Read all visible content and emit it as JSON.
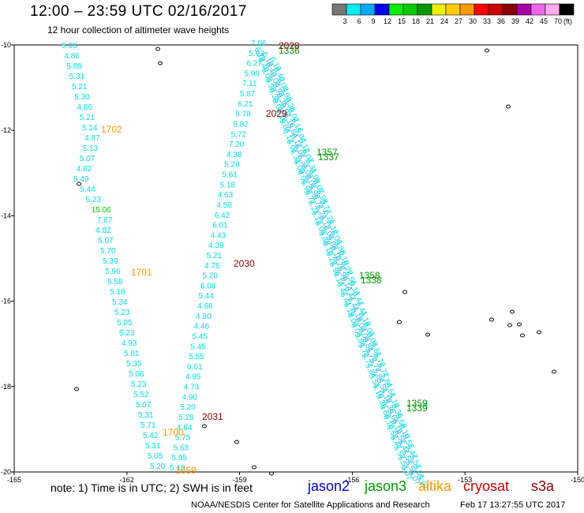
{
  "title": "12:00 – 23:59 UTC 02/16/2017",
  "subtitle": "12 hour collection of altimeter wave heights",
  "colorbar": {
    "unit": "(ft)",
    "bins": [
      {
        "color": "#777777",
        "label": "3"
      },
      {
        "color": "#00eeee",
        "label": "6"
      },
      {
        "color": "#00aaff",
        "label": "9"
      },
      {
        "color": "#0000ee",
        "label": "12"
      },
      {
        "color": "#00ee00",
        "label": "15"
      },
      {
        "color": "#00cc00",
        "label": "18"
      },
      {
        "color": "#009900",
        "label": "21"
      },
      {
        "color": "#eeee00",
        "label": "24"
      },
      {
        "color": "#ffcc00",
        "label": "27"
      },
      {
        "color": "#ff9900",
        "label": "30"
      },
      {
        "color": "#ff0000",
        "label": "33"
      },
      {
        "color": "#cc0000",
        "label": "36"
      },
      {
        "color": "#880000",
        "label": "39"
      },
      {
        "color": "#aa00aa",
        "label": "42"
      },
      {
        "color": "#ee66ee",
        "label": "45"
      },
      {
        "color": "#ffaaee",
        "label": "70"
      },
      {
        "color": "#000000",
        "label": ""
      }
    ]
  },
  "axes": {
    "lat_ticks": [
      "-10",
      "-12",
      "-14",
      "-16",
      "-18",
      "-20"
    ],
    "lon_ticks": [
      "-165",
      "-162",
      "-159",
      "-156",
      "-153",
      "-150"
    ]
  },
  "tracks": {
    "track_a": [
      "5.03",
      "4.86",
      "5.09",
      "5.31",
      "5.21",
      "5.30",
      "4.86",
      "5.21",
      "5.14",
      "4.87",
      "5.13",
      "5.07",
      "4.82",
      "5.49",
      "5.44",
      "5.23",
      "15.06",
      "7.67",
      "4.82",
      "5.07",
      "5.70",
      "5.39",
      "5.96",
      "5.58",
      "5.18",
      "5.34",
      "5.23",
      "5.05",
      "5.23",
      "4.93",
      "5.01",
      "5.35",
      "5.06",
      "5.23",
      "5.52",
      "5.07",
      "5.31",
      "5.71",
      "5.42",
      "5.31",
      "5.05",
      "5.20"
    ],
    "track_b": [
      "7.06",
      "5.93",
      "6.27",
      "5.99",
      "7.11",
      "5.87",
      "6.21",
      "5.78",
      "5.82",
      "5.72",
      "7.20",
      "4.38",
      "5.28",
      "5.61",
      "5.18",
      "4.63",
      "4.50",
      "6.42",
      "6.01",
      "4.43",
      "4.39",
      "5.21",
      "4.75",
      "5.20",
      "6.08",
      "5.44",
      "4.66",
      "4.80",
      "4.46",
      "5.45",
      "5.45",
      "5.55",
      "6.01",
      "4.95",
      "4.73",
      "4.90",
      "5.20",
      "5.28",
      "4.84",
      "5.75",
      "5.63",
      "5.95",
      "5.18"
    ],
    "track_c_labels": [
      "6.19",
      "6.40",
      "6.03",
      "5.98",
      "6.35",
      "6.02",
      "6.16",
      "5.84",
      "6.12",
      "6.07",
      "6.31",
      "6.09",
      "6.02",
      "5.98",
      "5.77",
      "6.21",
      "6.12",
      "6.03",
      "5.88",
      "6.10",
      "6.22",
      "5.96",
      "6.14",
      "6.47",
      "6.41",
      "6.19",
      "6.03",
      "6.03",
      "5.81",
      "5.72",
      "5.77",
      "5.84",
      "5.51",
      "5.19",
      "5.36",
      "5.68",
      "6.10",
      "6.52",
      "5.47",
      "5.57",
      "5.51",
      "5.07"
    ]
  },
  "time_labels": [
    {
      "text": "2028",
      "color": "#880000"
    },
    {
      "text": "1336",
      "color": "#009900"
    },
    {
      "text": "2029",
      "color": "#880000"
    },
    {
      "text": "1702",
      "color": "#ff9900"
    },
    {
      "text": "1357",
      "color": "#009900"
    },
    {
      "text": "1337",
      "color": "#009900"
    },
    {
      "text": "1701",
      "color": "#ff9900"
    },
    {
      "text": "2030",
      "color": "#880000"
    },
    {
      "text": "1358",
      "color": "#009900"
    },
    {
      "text": "1338",
      "color": "#009900"
    },
    {
      "text": "1359",
      "color": "#009900"
    },
    {
      "text": "1339",
      "color": "#009900"
    },
    {
      "text": "2031",
      "color": "#880000"
    },
    {
      "text": "1700",
      "color": "#ff9900"
    },
    {
      "text": "1659",
      "color": "#ff9900"
    }
  ],
  "note": "note:  1) Time is in UTC;  2) SWH is in feet",
  "legend": [
    {
      "name": "jason2",
      "color": "#0000cc"
    },
    {
      "name": "jason3",
      "color": "#009900"
    },
    {
      "name": "altika",
      "color": "#ff9900"
    },
    {
      "name": "cryosat",
      "color": "#cc0000"
    },
    {
      "name": "s3a",
      "color": "#880000"
    }
  ],
  "credit": "NOAA/NESDIS Center for Satellite Applications and Research",
  "stamp": "Feb 17 13:27:55 UTC 2017"
}
